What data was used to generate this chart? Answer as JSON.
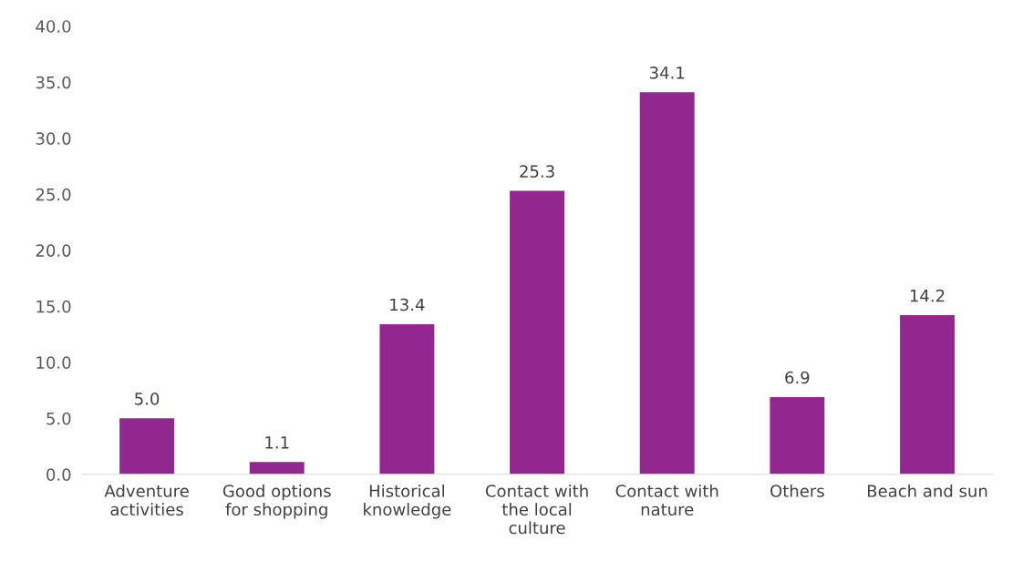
{
  "chart_data": {
    "type": "bar",
    "categories": [
      "Adventure\nactivities",
      "Good options\nfor shopping",
      "Historical\nknowledge",
      "Contact with\nthe local\nculture",
      "Contact with\nnature",
      "Others",
      "Beach and sun"
    ],
    "values": [
      5.0,
      1.1,
      13.4,
      25.3,
      34.1,
      6.9,
      14.2
    ],
    "value_labels": [
      "5.0",
      "1.1",
      "13.4",
      "25.3",
      "34.1",
      "6.9",
      "14.2"
    ],
    "color": "#92278f",
    "ylim": [
      0,
      40
    ],
    "yticks": [
      {
        "value": 0,
        "label": "0.0"
      },
      {
        "value": 5,
        "label": "5.0"
      },
      {
        "value": 10,
        "label": "10.0"
      },
      {
        "value": 15,
        "label": "15.0"
      },
      {
        "value": 20,
        "label": "20.0"
      },
      {
        "value": 25,
        "label": "25.0"
      },
      {
        "value": 30,
        "label": "30.0"
      },
      {
        "value": 35,
        "label": "35.0"
      },
      {
        "value": 40,
        "label": "40.0"
      }
    ],
    "grid": false
  }
}
